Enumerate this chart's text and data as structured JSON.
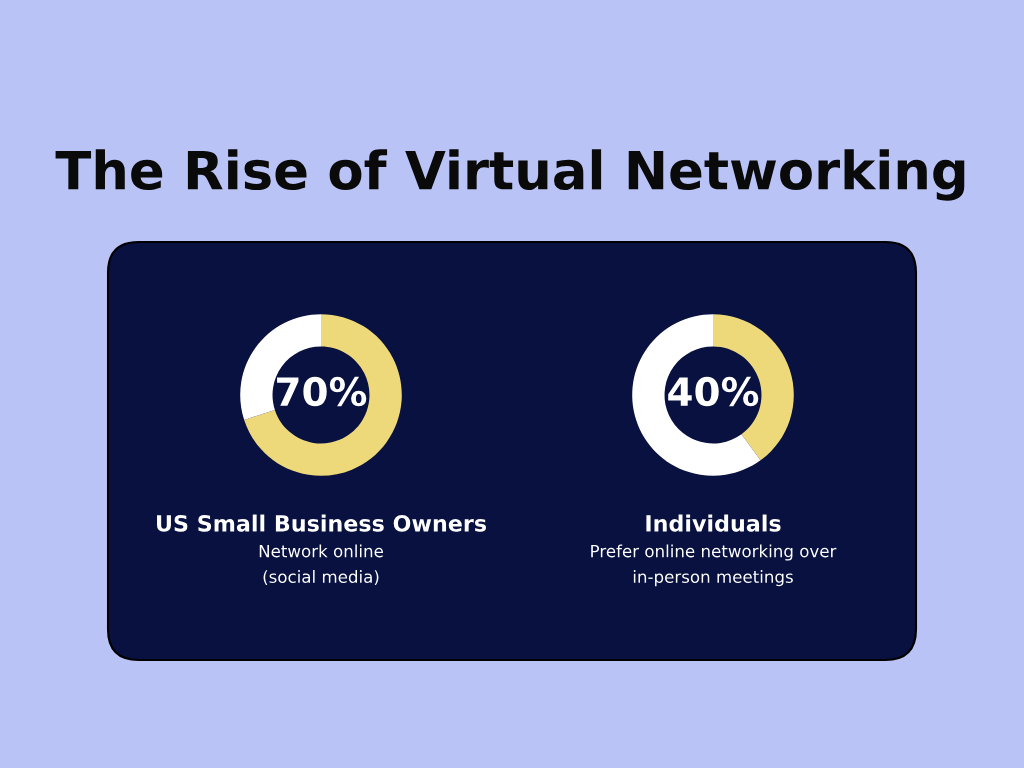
{
  "chart_data": [
    {
      "type": "other",
      "title": "The Rise of Virtual Networking"
    },
    {
      "type": "donut",
      "title": "US Small Business Owners",
      "subtitle": "Network online\n(social media)",
      "categories": [
        null,
        null
      ],
      "values": [
        70,
        30
      ],
      "colors": [
        "#eed97a",
        "#ffffff"
      ],
      "value_labels": [
        "70%",
        null
      ]
    },
    {
      "type": "donut",
      "title": "Individuals",
      "subtitle": "Prefer online networking over\nin-person meetings",
      "categories": [
        null,
        null
      ],
      "values": [
        40,
        60
      ],
      "colors": [
        "#eed97a",
        "#ffffff"
      ],
      "value_labels": [
        "40%",
        null
      ]
    }
  ]
}
